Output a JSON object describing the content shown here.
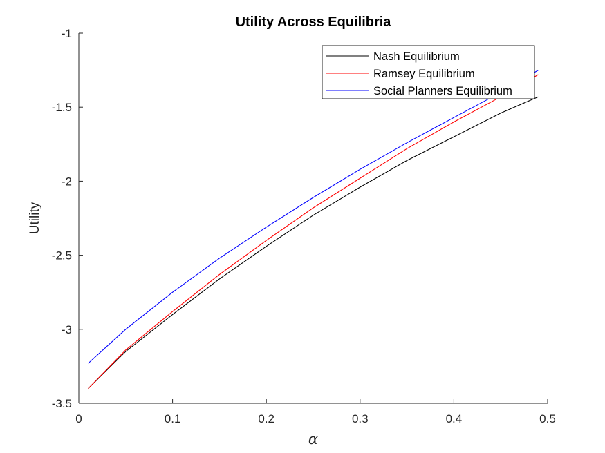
{
  "chart_data": {
    "type": "line",
    "title": "Utility Across Equilibria",
    "xlabel": "α",
    "ylabel": "Utility",
    "xlim": [
      0,
      0.5
    ],
    "ylim": [
      -3.5,
      -1
    ],
    "xticks": [
      "0",
      "0.1",
      "0.2",
      "0.3",
      "0.4",
      "0.5"
    ],
    "yticks": [
      "-1",
      "-1.5",
      "-2",
      "-2.5",
      "-3",
      "-3.5"
    ],
    "x": [
      0.01,
      0.05,
      0.1,
      0.15,
      0.2,
      0.25,
      0.3,
      0.35,
      0.4,
      0.45,
      0.49
    ],
    "series": [
      {
        "name": "Nash Equilibrium",
        "color": "#000000",
        "values": [
          -3.4,
          -3.15,
          -2.9,
          -2.66,
          -2.44,
          -2.23,
          -2.04,
          -1.86,
          -1.7,
          -1.54,
          -1.43
        ]
      },
      {
        "name": "Ramsey Equilibrium",
        "color": "#ff0000",
        "values": [
          -3.4,
          -3.14,
          -2.88,
          -2.63,
          -2.4,
          -2.18,
          -1.98,
          -1.78,
          -1.6,
          -1.43,
          -1.28
        ]
      },
      {
        "name": "Social Planners Equilibrium",
        "color": "#0000ff",
        "values": [
          -3.23,
          -3.0,
          -2.75,
          -2.52,
          -2.31,
          -2.11,
          -1.92,
          -1.74,
          -1.57,
          -1.4,
          -1.25
        ]
      }
    ],
    "grid": false,
    "legend_position": "top-right"
  }
}
